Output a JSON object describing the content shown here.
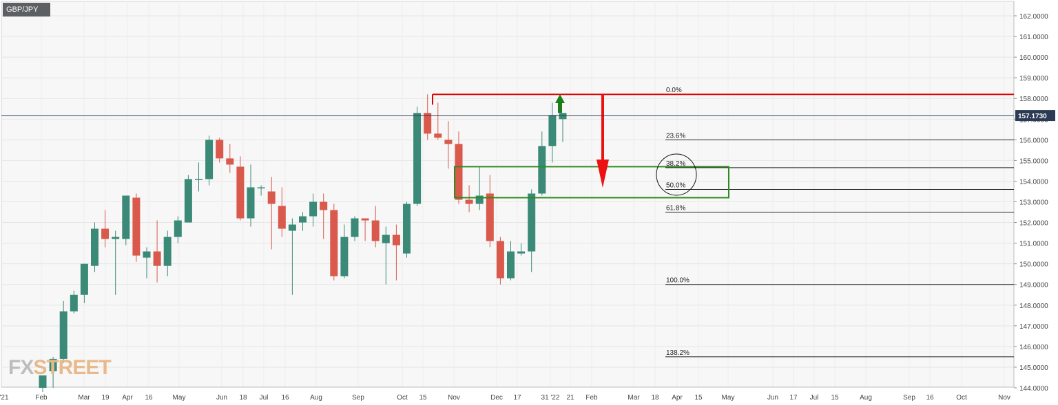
{
  "ticker": "GBP/JPY",
  "watermark": {
    "part1": "FX",
    "part2": "STREET"
  },
  "colors": {
    "up": "#3a8a77",
    "down": "#d9594c",
    "fib_high_line": "#e00000",
    "zone": "#2e8b1f",
    "arrow_up": "#1a7f1a",
    "arrow_down": "#ee1111",
    "price_badge": "#2b3a55"
  },
  "chart_data": {
    "type": "candlestick",
    "title": "",
    "xlabel": "",
    "ylabel": "",
    "ylim": [
      144,
      162.4
    ],
    "grid": true,
    "y_ticks": [
      "162.0000",
      "161.0000",
      "160.0000",
      "159.0000",
      "158.0000",
      "157.0000",
      "156.0000",
      "155.0000",
      "154.0000",
      "153.0000",
      "152.0000",
      "151.0000",
      "150.0000",
      "149.0000",
      "148.0000",
      "147.0000",
      "146.0000",
      "145.0000",
      "144.0000"
    ],
    "x_ticks": [
      "'21",
      "Feb",
      "Mar",
      "19",
      "Apr",
      "16",
      "May",
      "Jun",
      "18",
      "Jul",
      "16",
      "Aug",
      "Sep",
      "Oct",
      "15",
      "Nov",
      "Dec",
      "17",
      "31 '22",
      "21",
      "Feb",
      "Mar",
      "18",
      "Apr",
      "15",
      "May",
      "Jun",
      "17",
      "Jul",
      "15",
      "Aug",
      "Sep",
      "16",
      "Oct",
      "Nov"
    ],
    "last_price": 157.173,
    "last_price_label": "157.1730",
    "candles": [
      {
        "o": 144.0,
        "h": 144.6,
        "l": 143.8,
        "c": 144.6
      },
      {
        "o": 144.8,
        "h": 145.5,
        "l": 144.0,
        "c": 145.4
      },
      {
        "o": 145.4,
        "h": 148.2,
        "l": 145.2,
        "c": 147.7
      },
      {
        "o": 147.7,
        "h": 148.7,
        "l": 147.6,
        "c": 148.5
      },
      {
        "o": 148.5,
        "h": 150.0,
        "l": 148.1,
        "c": 150.0
      },
      {
        "o": 149.9,
        "h": 152.0,
        "l": 149.6,
        "c": 151.7
      },
      {
        "o": 151.7,
        "h": 152.6,
        "l": 150.8,
        "c": 151.2
      },
      {
        "o": 151.2,
        "h": 151.6,
        "l": 148.5,
        "c": 151.3
      },
      {
        "o": 151.2,
        "h": 153.3,
        "l": 150.9,
        "c": 153.3
      },
      {
        "o": 153.2,
        "h": 153.4,
        "l": 150.1,
        "c": 150.4
      },
      {
        "o": 150.3,
        "h": 150.8,
        "l": 149.3,
        "c": 150.6
      },
      {
        "o": 150.6,
        "h": 152.1,
        "l": 149.1,
        "c": 149.9
      },
      {
        "o": 149.9,
        "h": 151.6,
        "l": 149.4,
        "c": 151.3
      },
      {
        "o": 151.3,
        "h": 152.3,
        "l": 151.0,
        "c": 152.1
      },
      {
        "o": 152.0,
        "h": 154.3,
        "l": 152.0,
        "c": 154.1
      },
      {
        "o": 154.1,
        "h": 154.9,
        "l": 153.5,
        "c": 154.1
      },
      {
        "o": 154.1,
        "h": 156.2,
        "l": 153.8,
        "c": 156.0
      },
      {
        "o": 156.0,
        "h": 156.1,
        "l": 154.9,
        "c": 155.1
      },
      {
        "o": 155.1,
        "h": 155.8,
        "l": 154.4,
        "c": 154.8
      },
      {
        "o": 154.7,
        "h": 155.2,
        "l": 152.1,
        "c": 152.2
      },
      {
        "o": 152.2,
        "h": 154.8,
        "l": 151.8,
        "c": 153.7
      },
      {
        "o": 153.7,
        "h": 153.8,
        "l": 153.3,
        "c": 153.7
      },
      {
        "o": 153.5,
        "h": 154.2,
        "l": 150.7,
        "c": 152.9
      },
      {
        "o": 152.8,
        "h": 153.7,
        "l": 151.3,
        "c": 151.7
      },
      {
        "o": 151.6,
        "h": 152.2,
        "l": 148.5,
        "c": 151.9
      },
      {
        "o": 152.0,
        "h": 152.5,
        "l": 151.6,
        "c": 152.3
      },
      {
        "o": 152.3,
        "h": 153.4,
        "l": 151.8,
        "c": 153.0
      },
      {
        "o": 153.0,
        "h": 153.4,
        "l": 151.2,
        "c": 152.6
      },
      {
        "o": 152.6,
        "h": 152.9,
        "l": 149.2,
        "c": 149.4
      },
      {
        "o": 149.4,
        "h": 151.9,
        "l": 149.3,
        "c": 151.3
      },
      {
        "o": 151.3,
        "h": 152.3,
        "l": 151.1,
        "c": 152.2
      },
      {
        "o": 152.2,
        "h": 152.2,
        "l": 151.1,
        "c": 152.1
      },
      {
        "o": 152.1,
        "h": 152.8,
        "l": 150.8,
        "c": 151.1
      },
      {
        "o": 151.0,
        "h": 151.8,
        "l": 149.0,
        "c": 151.4
      },
      {
        "o": 151.4,
        "h": 151.9,
        "l": 149.2,
        "c": 150.9
      },
      {
        "o": 150.5,
        "h": 153.0,
        "l": 150.3,
        "c": 152.9
      },
      {
        "o": 152.9,
        "h": 157.6,
        "l": 152.8,
        "c": 157.3
      },
      {
        "o": 157.3,
        "h": 158.2,
        "l": 156.0,
        "c": 156.3
      },
      {
        "o": 156.3,
        "h": 157.8,
        "l": 156.0,
        "c": 156.1
      },
      {
        "o": 156.0,
        "h": 156.9,
        "l": 154.6,
        "c": 155.8
      },
      {
        "o": 155.8,
        "h": 156.4,
        "l": 152.9,
        "c": 153.1
      },
      {
        "o": 153.1,
        "h": 153.8,
        "l": 152.5,
        "c": 152.9
      },
      {
        "o": 152.9,
        "h": 154.7,
        "l": 152.6,
        "c": 153.3
      },
      {
        "o": 153.4,
        "h": 154.3,
        "l": 150.8,
        "c": 151.1
      },
      {
        "o": 151.1,
        "h": 151.3,
        "l": 149.0,
        "c": 149.3
      },
      {
        "o": 149.3,
        "h": 151.1,
        "l": 149.2,
        "c": 150.6
      },
      {
        "o": 150.5,
        "h": 151.0,
        "l": 150.4,
        "c": 150.6
      },
      {
        "o": 150.6,
        "h": 153.6,
        "l": 149.6,
        "c": 153.4
      },
      {
        "o": 153.4,
        "h": 156.4,
        "l": 153.3,
        "c": 155.7
      },
      {
        "o": 155.7,
        "h": 157.8,
        "l": 154.9,
        "c": 157.2
      },
      {
        "o": 157.0,
        "h": 157.2,
        "l": 155.9,
        "c": 157.3
      }
    ],
    "fib_levels": [
      {
        "label": "0.0%",
        "value": 158.2
      },
      {
        "label": "23.6%",
        "value": 156.0
      },
      {
        "label": "38.2%",
        "value": 154.65
      },
      {
        "label": "50.0%",
        "value": 153.6
      },
      {
        "label": "61.8%",
        "value": 152.5
      },
      {
        "label": "100.0%",
        "value": 149.0
      },
      {
        "label": "138.2%",
        "value": 145.5
      }
    ],
    "zone": {
      "low": 153.2,
      "high": 154.7
    }
  }
}
